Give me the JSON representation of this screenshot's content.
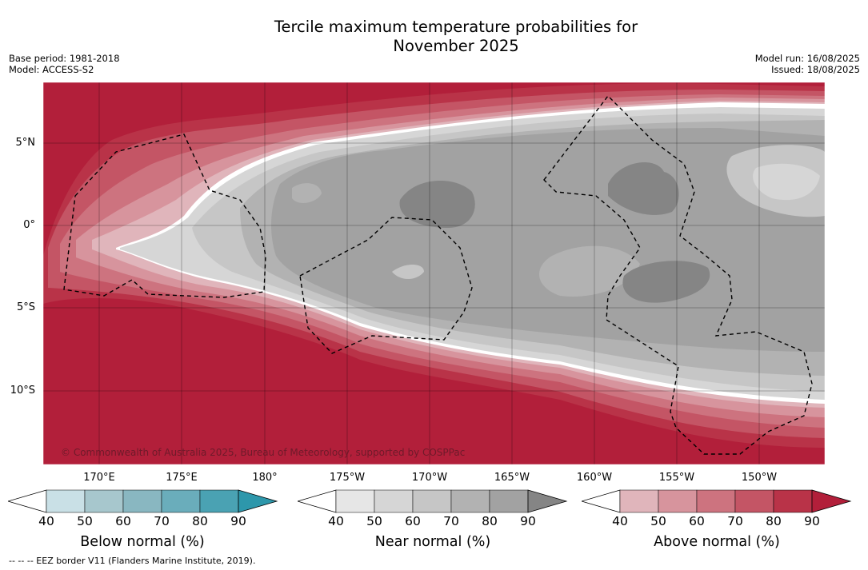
{
  "header": {
    "title_line1": "Tercile maximum temperature probabilities for",
    "title_line2": "November 2025",
    "base_period": "Base period: 1981-2018",
    "model": "Model: ACCESS-S2",
    "model_run": "Model run: 16/08/2025",
    "issued": "Issued: 18/08/2025"
  },
  "map": {
    "lat_labels": [
      "5°N",
      "0°",
      "5°S",
      "10°S"
    ],
    "lon_labels": [
      "170°E",
      "175°E",
      "180°",
      "175°W",
      "170°W",
      "165°W",
      "160°W",
      "155°W",
      "150°W"
    ],
    "copyright": "© Commonwealth of Australia 2025, Bureau of Meteorology, supported by COSPPac",
    "colors": {
      "ocean_above90": "#b21f3a",
      "near60": "#c6c6c6",
      "near70": "#b2b2b2",
      "near80": "#a2a2a2",
      "near90": "#858585"
    }
  },
  "colorbars": [
    {
      "title": "Below normal (%)",
      "ticks": [
        "40",
        "50",
        "60",
        "70",
        "80",
        "90"
      ],
      "colors": [
        "#c9e0e6",
        "#a7c7cd",
        "#89b7c1",
        "#6aadbb",
        "#4aa2b3",
        "#2d97ab"
      ]
    },
    {
      "title": "Near normal (%)",
      "ticks": [
        "40",
        "50",
        "60",
        "70",
        "80",
        "90"
      ],
      "colors": [
        "#e6e6e6",
        "#d6d6d6",
        "#c6c6c6",
        "#b2b2b2",
        "#a2a2a2",
        "#858585"
      ]
    },
    {
      "title": "Above normal (%)",
      "ticks": [
        "40",
        "50",
        "60",
        "70",
        "80",
        "90"
      ],
      "colors": [
        "#e0b5bb",
        "#d7949d",
        "#cd737f",
        "#c45565",
        "#b93348",
        "#b21f3a"
      ]
    }
  ],
  "footnote": "-- -- -- EEZ border V11 (Flanders Marine Institute, 2019)."
}
